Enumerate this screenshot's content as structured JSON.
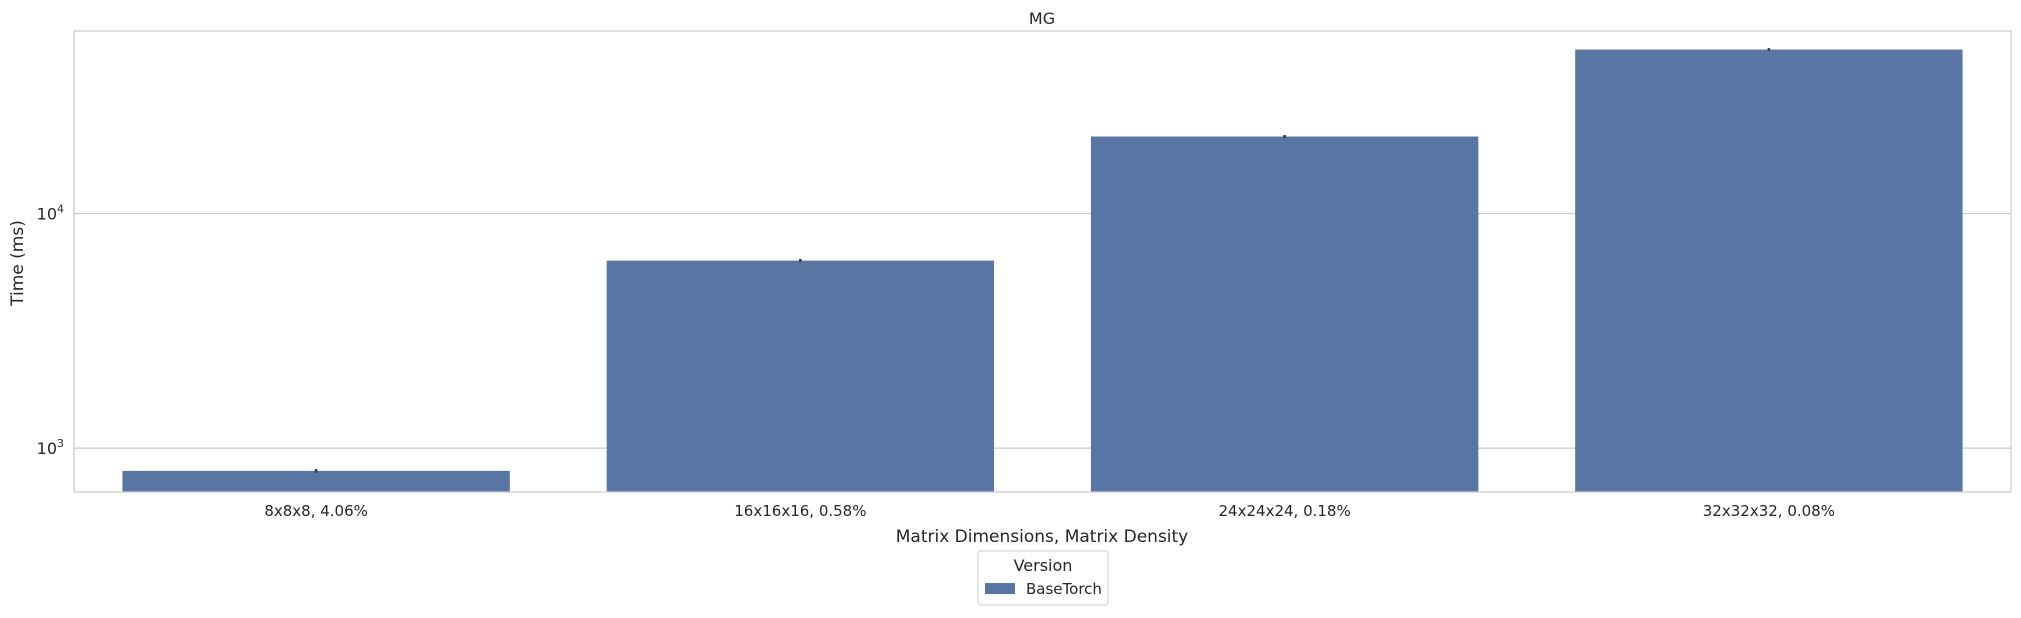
{
  "chart_data": {
    "type": "bar",
    "title": "MG",
    "xlabel": "Matrix Dimensions, Matrix Density",
    "ylabel": "Time (ms)",
    "yscale": "log",
    "ylim": [
      650,
      60000
    ],
    "yticks": [
      1000,
      10000
    ],
    "ytick_labels": [
      {
        "base": "10",
        "exp": "3"
      },
      {
        "base": "10",
        "exp": "4"
      }
    ],
    "grid": "horizontal",
    "categories": [
      "8x8x8, 4.06%",
      "16x16x16, 0.58%",
      "24x24x24, 0.18%",
      "32x32x32, 0.08%"
    ],
    "series": [
      {
        "name": "BaseTorch",
        "color": "#5975a4",
        "values": [
          800,
          6300,
          21300,
          50000
        ],
        "error_low": [
          785,
          6200,
          21300,
          49600
        ],
        "error_high": [
          815,
          6400,
          21300,
          50400
        ]
      }
    ],
    "legend": {
      "title": "Version",
      "placement": "bottom-center",
      "entries": [
        "BaseTorch"
      ]
    }
  }
}
